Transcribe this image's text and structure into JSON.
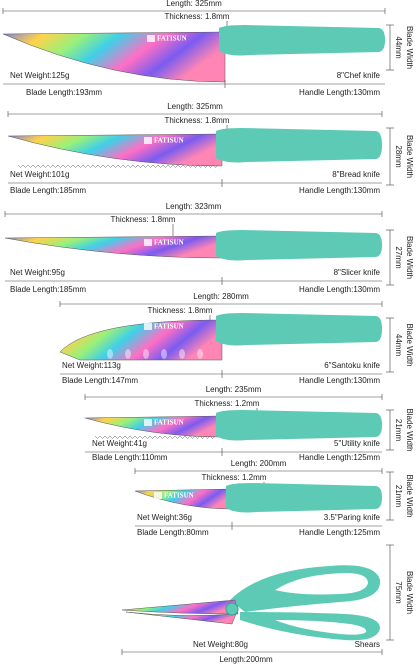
{
  "brand": "FATISUN",
  "items": [
    {
      "length": "Length: 325mm",
      "thickness": "Thickness: 1.8mm",
      "blade_width": "44mm",
      "blade_width_label": "Blade Width",
      "net_weight": "Net Weight:125g",
      "name": "8\"Chef knife",
      "blade_length": "Blade Length:193mm",
      "handle_length": "Handle Length:130mm"
    },
    {
      "length": "Length: 325mm",
      "thickness": "Thickness: 1.8mm",
      "blade_width": "28mm",
      "blade_width_label": "Blade Width",
      "net_weight": "Net Weight:101g",
      "name": "8\"Bread knife",
      "blade_length": "Blade Length:185mm",
      "handle_length": "Handle Length:130mm"
    },
    {
      "length": "Length: 323mm",
      "thickness": "Thickness: 1.8mm",
      "blade_width": "27mm",
      "blade_width_label": "Blade Width",
      "net_weight": "Net Weight:95g",
      "name": "8\"Slicer knife",
      "blade_length": "Blade Length:185mm",
      "handle_length": "Handle Length:130mm"
    },
    {
      "length": "Length: 280mm",
      "thickness": "Thickness: 1.8mm",
      "blade_width": "44mm",
      "blade_width_label": "Blade Width",
      "net_weight": "Net Weight:113g",
      "name": "6\"Santoku knife",
      "blade_length": "Blade Length:147mm",
      "handle_length": "Handle Length:130mm"
    },
    {
      "length": "Length: 235mm",
      "thickness": "Thickness: 1.2mm",
      "blade_width": "21mm",
      "blade_width_label": "Blade Width",
      "net_weight": "Net Weight:41g",
      "name": "5\"Utility knife",
      "blade_length": "Blade Length:110mm",
      "handle_length": "Handle Length:125mm"
    },
    {
      "length": "Length: 200mm",
      "thickness": "Thickness: 1.2mm",
      "blade_width": "21mm",
      "blade_width_label": "Blade Width",
      "net_weight": "Net Weight:36g",
      "name": "3.5\"Paring knife",
      "blade_length": "Blade Length:80mm",
      "handle_length": "Handle Length:125mm"
    },
    {
      "blade_width": "75mm",
      "blade_width_label": "Blade Width",
      "net_weight": "Net Weight:80g",
      "name": "Shears",
      "length": "Length:200mm"
    }
  ]
}
